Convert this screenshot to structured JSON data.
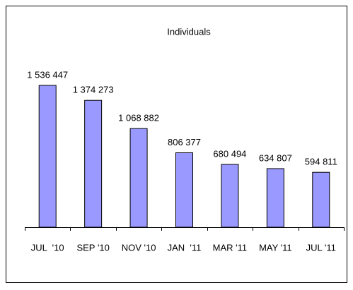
{
  "chart_data": {
    "type": "bar",
    "title": "Individuals",
    "categories": [
      "JUL  '10",
      "SEP '10",
      "NOV '10",
      "JAN  '11",
      "MAR '11",
      "MAY '11",
      "JUL '11"
    ],
    "values": [
      1536447,
      1374273,
      1068882,
      806377,
      680494,
      634807,
      594811
    ],
    "value_labels": [
      "1 536 447",
      "1 374 273",
      "1 068 882",
      "806 377",
      "680 494",
      "634 807",
      "594 811"
    ],
    "color": "#9999ff"
  }
}
